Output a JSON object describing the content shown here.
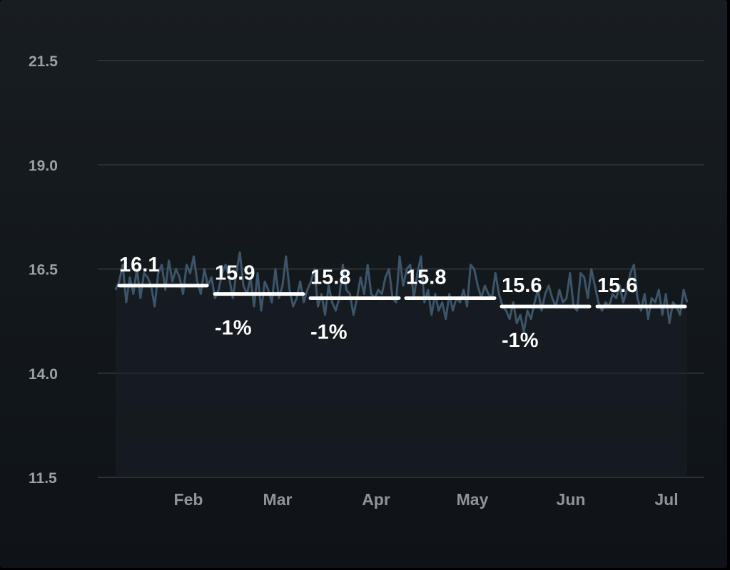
{
  "chart_data": {
    "type": "line",
    "ylim": [
      11.5,
      21.5
    ],
    "y_ticks": [
      "21.5",
      "19.0",
      "16.5",
      "14.0",
      "11.5"
    ],
    "y_tick_values": [
      21.5,
      19.0,
      16.5,
      14.0,
      11.5
    ],
    "x_ticks": [
      "Feb",
      "Mar",
      "Apr",
      "May",
      "Jun",
      "Jul"
    ],
    "grid": true,
    "colors": {
      "series": "#3d5469",
      "grid": "#2c3238",
      "averages": "#ffffff"
    },
    "series": [
      {
        "values": [
          16.0,
          16.2,
          16.6,
          15.7,
          16.3,
          15.9,
          16.5,
          15.8,
          16.4,
          16.3,
          16.1,
          15.6,
          16.4,
          16.6,
          16.0,
          16.7,
          16.2,
          16.5,
          16.3,
          15.9,
          16.6,
          16.4,
          16.8,
          16.2,
          15.9,
          16.5,
          16.1,
          16.3,
          15.8,
          16.0,
          16.4,
          16.6,
          16.3,
          15.8,
          16.4,
          16.9,
          16.1,
          15.9,
          16.3,
          15.6,
          16.4,
          15.5,
          16.2,
          16.0,
          15.7,
          16.5,
          15.8,
          16.1,
          16.8,
          16.0,
          15.6,
          15.8,
          16.2,
          15.7,
          16.0,
          16.2,
          16.5,
          15.6,
          15.9,
          15.4,
          16.1,
          15.7,
          15.5,
          15.8,
          16.6,
          16.0,
          15.9,
          15.4,
          15.8,
          16.3,
          15.9,
          16.6,
          15.9,
          15.8,
          16.0,
          15.9,
          16.3,
          16.5,
          15.8,
          15.7,
          16.8,
          16.1,
          16.5,
          16.6,
          15.8,
          16.4,
          16.8,
          15.7,
          16.0,
          15.4,
          15.9,
          15.5,
          15.7,
          15.3,
          15.9,
          15.5,
          15.8,
          15.7,
          16.0,
          15.6,
          16.6,
          16.5,
          16.1,
          15.8,
          16.1,
          15.9,
          15.8,
          16.4,
          15.9,
          15.6,
          15.5,
          15.3,
          15.7,
          15.2,
          15.4,
          15.0,
          15.5,
          15.3,
          15.7,
          16.0,
          15.5,
          15.9,
          16.1,
          15.8,
          15.6,
          16.0,
          15.7,
          15.8,
          16.4,
          15.6,
          15.5,
          16.4,
          16.3,
          15.8,
          16.5,
          16.1,
          15.7,
          15.5,
          15.7,
          15.6,
          15.9,
          15.8,
          16.1,
          15.7,
          16.0,
          16.4,
          16.6,
          15.8,
          15.5,
          15.9,
          15.3,
          15.8,
          15.7,
          16.0,
          15.4,
          15.9,
          15.2,
          15.7,
          15.6,
          15.4,
          16.0,
          15.7
        ]
      }
    ],
    "monthly_averages": [
      {
        "value": 16.1,
        "label": "16.1",
        "change": ""
      },
      {
        "value": 15.9,
        "label": "15.9",
        "change": "-1%"
      },
      {
        "value": 15.8,
        "label": "15.8",
        "change": "-1%"
      },
      {
        "value": 15.8,
        "label": "15.8",
        "change": ""
      },
      {
        "value": 15.6,
        "label": "15.6",
        "change": "-1%"
      },
      {
        "value": 15.6,
        "label": "15.6",
        "change": ""
      }
    ]
  }
}
